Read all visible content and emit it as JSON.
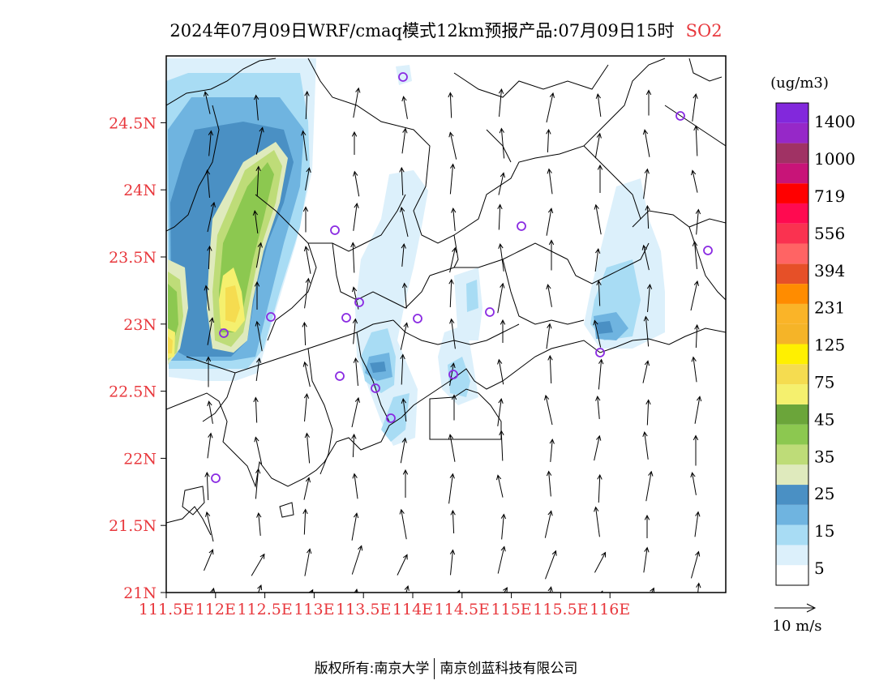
{
  "title": {
    "main": "2024年07月09日WRF/cmaq模式12km预报产品:07月09日15时",
    "species": "SO2"
  },
  "map": {
    "lon_labels": [
      "111.5E",
      "112E",
      "112.5E",
      "113E",
      "113.5E",
      "114E",
      "114.5E",
      "115E",
      "115.5E",
      "116E"
    ],
    "lat_labels": [
      "21N",
      "21.5N",
      "22N",
      "22.5N",
      "23N",
      "23.5N",
      "24N",
      "24.5N"
    ],
    "label_color": "#e8383d",
    "station_color": "#8a2be2"
  },
  "colorbar": {
    "unit": "(ug/m3)",
    "colors": [
      "#ffffff",
      "#dcf0fb",
      "#a8dcf4",
      "#6fb4e0",
      "#4a90c4",
      "#dfeabd",
      "#bedc78",
      "#8cc850",
      "#6ba53a",
      "#f5f06e",
      "#f5dc50",
      "#fff000",
      "#f5b428",
      "#fab428",
      "#ff8c00",
      "#e65028",
      "#ff6464",
      "#fa3250",
      "#ff0a50",
      "#ff0000",
      "#c81478",
      "#a03264",
      "#9628c8",
      "#8228dc"
    ],
    "labels": [
      "5",
      "15",
      "25",
      "35",
      "45",
      "75",
      "125",
      "231",
      "394",
      "556",
      "719",
      "1000",
      "1400"
    ]
  },
  "wind_legend": {
    "label": "10 m/s"
  },
  "copyright": {
    "left": "版权所有:南京大学",
    "right": "南京创蓝科技有限公司"
  }
}
